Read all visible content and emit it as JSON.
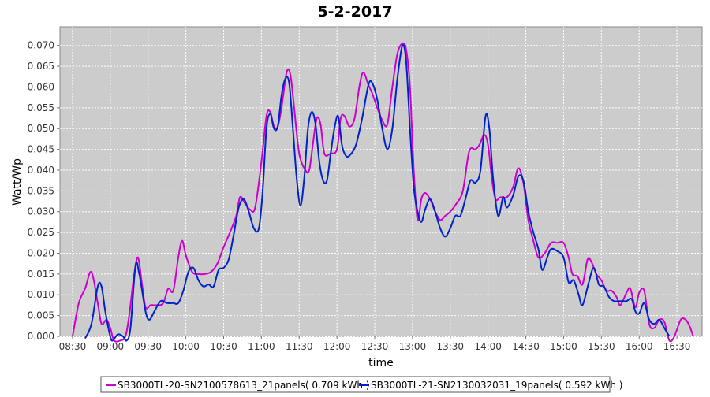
{
  "chart_data": {
    "type": "line",
    "title": "5-2-2017",
    "xlabel": "time",
    "ylabel": "Watt/Wp",
    "x_ticks": [
      "08:30",
      "09:00",
      "09:30",
      "10:00",
      "10:30",
      "11:00",
      "11:30",
      "12:00",
      "12:30",
      "13:00",
      "13:30",
      "14:00",
      "14:30",
      "15:00",
      "15:30",
      "16:00",
      "16:30"
    ],
    "y_ticks": [
      "0.000",
      "0.005",
      "0.010",
      "0.015",
      "0.020",
      "0.025",
      "0.030",
      "0.035",
      "0.040",
      "0.045",
      "0.050",
      "0.055",
      "0.060",
      "0.065",
      "0.070"
    ],
    "xlim": [
      "08:20",
      "16:50"
    ],
    "ylim": [
      0,
      0.0745
    ],
    "grid": true,
    "legend_position": "bottom",
    "series": [
      {
        "name": "SB3000TL-20-SN2100578613_21panels( 0.709 kWh )",
        "color": "#cc00cc",
        "points": [
          [
            "08:30",
            0.0
          ],
          [
            "08:35",
            0.008
          ],
          [
            "08:40",
            0.0115
          ],
          [
            "08:45",
            0.0155
          ],
          [
            "08:50",
            0.008
          ],
          [
            "08:53",
            0.003
          ],
          [
            "08:57",
            0.004
          ],
          [
            "09:00",
            0.002
          ],
          [
            "09:03",
            -0.001
          ],
          [
            "09:08",
            -0.001
          ],
          [
            "09:12",
            0.0
          ],
          [
            "09:15",
            0.005
          ],
          [
            "09:19",
            0.015
          ],
          [
            "09:22",
            0.019
          ],
          [
            "09:25",
            0.013
          ],
          [
            "09:28",
            0.007
          ],
          [
            "09:32",
            0.0075
          ],
          [
            "09:37",
            0.0075
          ],
          [
            "09:42",
            0.008
          ],
          [
            "09:46",
            0.0115
          ],
          [
            "09:50",
            0.011
          ],
          [
            "09:54",
            0.019
          ],
          [
            "09:57",
            0.023
          ],
          [
            "10:00",
            0.0195
          ],
          [
            "10:05",
            0.0155
          ],
          [
            "10:10",
            0.015
          ],
          [
            "10:15",
            0.015
          ],
          [
            "10:20",
            0.0155
          ],
          [
            "10:25",
            0.0175
          ],
          [
            "10:30",
            0.0215
          ],
          [
            "10:35",
            0.025
          ],
          [
            "10:40",
            0.029
          ],
          [
            "10:43",
            0.0335
          ],
          [
            "10:47",
            0.032
          ],
          [
            "10:51",
            0.0305
          ],
          [
            "10:55",
            0.031
          ],
          [
            "11:00",
            0.042
          ],
          [
            "11:04",
            0.053
          ],
          [
            "11:07",
            0.054
          ],
          [
            "11:10",
            0.0505
          ],
          [
            "11:13",
            0.0505
          ],
          [
            "11:16",
            0.055
          ],
          [
            "11:20",
            0.0635
          ],
          [
            "11:23",
            0.063
          ],
          [
            "11:26",
            0.055
          ],
          [
            "11:30",
            0.044
          ],
          [
            "11:35",
            0.04
          ],
          [
            "11:38",
            0.04
          ],
          [
            "11:41",
            0.0465
          ],
          [
            "11:44",
            0.0525
          ],
          [
            "11:47",
            0.051
          ],
          [
            "11:50",
            0.044
          ],
          [
            "11:55",
            0.044
          ],
          [
            "12:00",
            0.045
          ],
          [
            "12:03",
            0.0525
          ],
          [
            "12:06",
            0.053
          ],
          [
            "12:10",
            0.0505
          ],
          [
            "12:14",
            0.0525
          ],
          [
            "12:18",
            0.0605
          ],
          [
            "12:21",
            0.0635
          ],
          [
            "12:25",
            0.0605
          ],
          [
            "12:28",
            0.0585
          ],
          [
            "12:32",
            0.055
          ],
          [
            "12:36",
            0.052
          ],
          [
            "12:40",
            0.051
          ],
          [
            "12:44",
            0.06
          ],
          [
            "12:48",
            0.068
          ],
          [
            "12:52",
            0.0705
          ],
          [
            "12:55",
            0.069
          ],
          [
            "12:58",
            0.06
          ],
          [
            "13:01",
            0.04
          ],
          [
            "13:04",
            0.028
          ],
          [
            "13:07",
            0.033
          ],
          [
            "13:10",
            0.0345
          ],
          [
            "13:14",
            0.033
          ],
          [
            "13:18",
            0.03
          ],
          [
            "13:22",
            0.028
          ],
          [
            "13:26",
            0.029
          ],
          [
            "13:30",
            0.03
          ],
          [
            "13:35",
            0.032
          ],
          [
            "13:40",
            0.035
          ],
          [
            "13:45",
            0.0445
          ],
          [
            "13:50",
            0.045
          ],
          [
            "13:53",
            0.046
          ],
          [
            "13:57",
            0.0485
          ],
          [
            "14:00",
            0.046
          ],
          [
            "14:03",
            0.038
          ],
          [
            "14:06",
            0.033
          ],
          [
            "14:10",
            0.0335
          ],
          [
            "14:15",
            0.0335
          ],
          [
            "14:20",
            0.036
          ],
          [
            "14:24",
            0.0405
          ],
          [
            "14:28",
            0.037
          ],
          [
            "14:32",
            0.028
          ],
          [
            "14:36",
            0.023
          ],
          [
            "14:40",
            0.019
          ],
          [
            "14:45",
            0.02
          ],
          [
            "14:50",
            0.0225
          ],
          [
            "14:55",
            0.0225
          ],
          [
            "15:00",
            0.0225
          ],
          [
            "15:04",
            0.019
          ],
          [
            "15:07",
            0.015
          ],
          [
            "15:11",
            0.0145
          ],
          [
            "15:15",
            0.0125
          ],
          [
            "15:19",
            0.0185
          ],
          [
            "15:22",
            0.018
          ],
          [
            "15:26",
            0.015
          ],
          [
            "15:30",
            0.0135
          ],
          [
            "15:34",
            0.011
          ],
          [
            "15:38",
            0.011
          ],
          [
            "15:42",
            0.0095
          ],
          [
            "15:45",
            0.0075
          ],
          [
            "15:50",
            0.0105
          ],
          [
            "15:53",
            0.0115
          ],
          [
            "15:57",
            0.007
          ],
          [
            "16:00",
            0.0105
          ],
          [
            "16:04",
            0.011
          ],
          [
            "16:08",
            0.003
          ],
          [
            "16:12",
            0.002
          ],
          [
            "16:16",
            0.004
          ],
          [
            "16:20",
            0.0035
          ],
          [
            "16:24",
            -0.001
          ],
          [
            "16:28",
            0.0
          ],
          [
            "16:33",
            0.004
          ],
          [
            "16:37",
            0.004
          ],
          [
            "16:40",
            0.0025
          ],
          [
            "16:43",
            0.0
          ]
        ]
      },
      {
        "name": "SB3000TL-21-SN2130032031_19panels( 0.592 kWh )",
        "color": "#0022cc",
        "points": [
          [
            "08:40",
            -0.0005
          ],
          [
            "08:45",
            0.003
          ],
          [
            "08:50",
            0.012
          ],
          [
            "08:53",
            0.012
          ],
          [
            "08:56",
            0.006
          ],
          [
            "09:00",
            0.0
          ],
          [
            "09:02",
            -0.001
          ],
          [
            "09:06",
            0.0005
          ],
          [
            "09:10",
            0.0
          ],
          [
            "09:13",
            -0.001
          ],
          [
            "09:16",
            0.002
          ],
          [
            "09:20",
            0.017
          ],
          [
            "09:23",
            0.015
          ],
          [
            "09:28",
            0.006
          ],
          [
            "09:31",
            0.004
          ],
          [
            "09:35",
            0.006
          ],
          [
            "09:40",
            0.0085
          ],
          [
            "09:45",
            0.008
          ],
          [
            "09:50",
            0.008
          ],
          [
            "09:54",
            0.008
          ],
          [
            "09:58",
            0.011
          ],
          [
            "10:02",
            0.0155
          ],
          [
            "10:06",
            0.0165
          ],
          [
            "10:10",
            0.0135
          ],
          [
            "10:14",
            0.012
          ],
          [
            "10:18",
            0.0125
          ],
          [
            "10:22",
            0.012
          ],
          [
            "10:26",
            0.016
          ],
          [
            "10:30",
            0.0165
          ],
          [
            "10:34",
            0.0185
          ],
          [
            "10:38",
            0.0245
          ],
          [
            "10:42",
            0.031
          ],
          [
            "10:46",
            0.033
          ],
          [
            "10:50",
            0.03
          ],
          [
            "10:54",
            0.026
          ],
          [
            "10:58",
            0.026
          ],
          [
            "11:01",
            0.035
          ],
          [
            "11:04",
            0.05
          ],
          [
            "11:07",
            0.0535
          ],
          [
            "11:10",
            0.05
          ],
          [
            "11:13",
            0.0505
          ],
          [
            "11:16",
            0.058
          ],
          [
            "11:19",
            0.062
          ],
          [
            "11:22",
            0.061
          ],
          [
            "11:25",
            0.05
          ],
          [
            "11:28",
            0.038
          ],
          [
            "11:31",
            0.0315
          ],
          [
            "11:34",
            0.038
          ],
          [
            "11:37",
            0.05
          ],
          [
            "11:40",
            0.054
          ],
          [
            "11:43",
            0.051
          ],
          [
            "11:46",
            0.042
          ],
          [
            "11:49",
            0.0375
          ],
          [
            "11:52",
            0.0375
          ],
          [
            "11:55",
            0.044
          ],
          [
            "11:58",
            0.05
          ],
          [
            "12:01",
            0.053
          ],
          [
            "12:04",
            0.046
          ],
          [
            "12:07",
            0.0435
          ],
          [
            "12:10",
            0.0435
          ],
          [
            "12:15",
            0.046
          ],
          [
            "12:20",
            0.0525
          ],
          [
            "12:25",
            0.0605
          ],
          [
            "12:28",
            0.061
          ],
          [
            "12:32",
            0.057
          ],
          [
            "12:36",
            0.05
          ],
          [
            "12:40",
            0.045
          ],
          [
            "12:44",
            0.05
          ],
          [
            "12:48",
            0.062
          ],
          [
            "12:52",
            0.07
          ],
          [
            "12:55",
            0.066
          ],
          [
            "12:58",
            0.05
          ],
          [
            "13:01",
            0.036
          ],
          [
            "13:04",
            0.03
          ],
          [
            "13:07",
            0.0275
          ],
          [
            "13:10",
            0.0305
          ],
          [
            "13:14",
            0.033
          ],
          [
            "13:18",
            0.03
          ],
          [
            "13:22",
            0.026
          ],
          [
            "13:26",
            0.024
          ],
          [
            "13:30",
            0.026
          ],
          [
            "13:34",
            0.029
          ],
          [
            "13:38",
            0.029
          ],
          [
            "13:42",
            0.033
          ],
          [
            "13:46",
            0.0375
          ],
          [
            "13:50",
            0.037
          ],
          [
            "13:54",
            0.04
          ],
          [
            "13:58",
            0.053
          ],
          [
            "14:01",
            0.05
          ],
          [
            "14:04",
            0.038
          ],
          [
            "14:08",
            0.029
          ],
          [
            "14:12",
            0.0335
          ],
          [
            "14:15",
            0.031
          ],
          [
            "14:20",
            0.034
          ],
          [
            "14:24",
            0.0385
          ],
          [
            "14:28",
            0.0375
          ],
          [
            "14:32",
            0.03
          ],
          [
            "14:36",
            0.025
          ],
          [
            "14:40",
            0.021
          ],
          [
            "14:43",
            0.016
          ],
          [
            "14:47",
            0.019
          ],
          [
            "14:50",
            0.021
          ],
          [
            "14:55",
            0.0205
          ],
          [
            "15:00",
            0.019
          ],
          [
            "15:04",
            0.013
          ],
          [
            "15:08",
            0.0135
          ],
          [
            "15:12",
            0.01
          ],
          [
            "15:15",
            0.0075
          ],
          [
            "15:20",
            0.013
          ],
          [
            "15:24",
            0.0165
          ],
          [
            "15:28",
            0.0125
          ],
          [
            "15:32",
            0.012
          ],
          [
            "15:36",
            0.0095
          ],
          [
            "15:40",
            0.0085
          ],
          [
            "15:45",
            0.0085
          ],
          [
            "15:50",
            0.0085
          ],
          [
            "15:54",
            0.009
          ],
          [
            "15:57",
            0.006
          ],
          [
            "16:00",
            0.0055
          ],
          [
            "16:04",
            0.008
          ],
          [
            "16:08",
            0.004
          ],
          [
            "16:12",
            0.003
          ],
          [
            "16:16",
            0.004
          ],
          [
            "16:20",
            0.002
          ],
          [
            "16:24",
            0.0
          ]
        ]
      }
    ]
  }
}
